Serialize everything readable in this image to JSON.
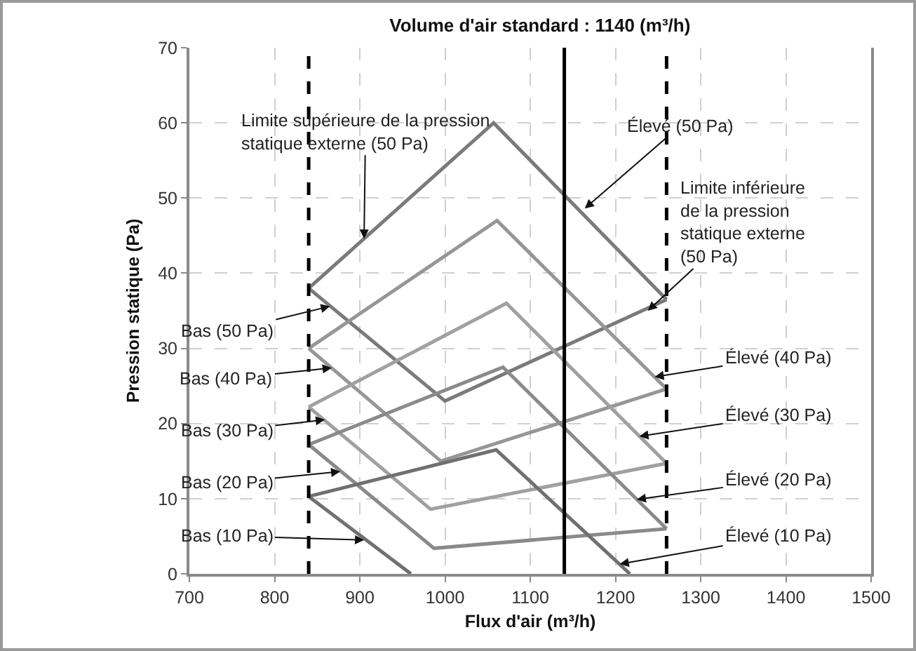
{
  "chart_data": {
    "type": "line",
    "title": "Volume d'air standard : 1140 (m³/h)",
    "xlabel": "Flux d'air (m³/h)",
    "ylabel": "Pression statique (Pa)",
    "xlim": [
      700,
      1500
    ],
    "ylim": [
      0,
      70
    ],
    "xticks": [
      700,
      800,
      900,
      1000,
      1100,
      1200,
      1300,
      1400,
      1500
    ],
    "yticks": [
      0,
      10,
      20,
      30,
      40,
      50,
      60,
      70
    ],
    "grid": true,
    "line_style": "solid",
    "series": [
      {
        "color": "#7a7a7a",
        "x": [
          840,
          1057,
          1260
        ],
        "values": [
          38,
          60,
          36.5
        ]
      },
      {
        "color": "#7a7a7a",
        "x": [
          840,
          1000,
          1260
        ],
        "values": [
          38,
          23,
          36.5
        ]
      },
      {
        "color": "#969696",
        "x": [
          840,
          1061,
          1260
        ],
        "values": [
          30,
          47,
          24.6
        ]
      },
      {
        "color": "#969696",
        "x": [
          840,
          995,
          1260
        ],
        "values": [
          30,
          15,
          24.6
        ]
      },
      {
        "color": "#a0a0a0",
        "x": [
          840,
          1072,
          1260
        ],
        "values": [
          22.2,
          36,
          14.7
        ]
      },
      {
        "color": "#a0a0a0",
        "x": [
          840,
          983,
          1260
        ],
        "values": [
          22.2,
          8.6,
          14.7
        ]
      },
      {
        "color": "#8a8a8a",
        "x": [
          840,
          1068,
          1260
        ],
        "values": [
          17.2,
          27.5,
          6
        ]
      },
      {
        "color": "#8a8a8a",
        "x": [
          840,
          987,
          1260
        ],
        "values": [
          17.2,
          3.4,
          6
        ]
      },
      {
        "color": "#707070",
        "x": [
          840,
          1060,
          1217
        ],
        "values": [
          10.3,
          16.5,
          0
        ]
      },
      {
        "color": "#707070",
        "x": [
          840,
          960
        ],
        "values": [
          10.3,
          0
        ]
      }
    ],
    "ref_lines": [
      {
        "axis": "x",
        "value": 840,
        "color": "#000000",
        "line_style": "dashed"
      },
      {
        "axis": "x",
        "value": 1140,
        "color": "#000000",
        "line_style": "solid"
      },
      {
        "axis": "x",
        "value": 1260,
        "color": "#000000",
        "line_style": "dashed"
      }
    ],
    "annotations": [
      {
        "text": "Limite supérieure de la pression\nstatique externe (50 Pa)",
        "x": 905,
        "y": 44.6
      },
      {
        "text": "Élevé (50 Pa)",
        "x": 1164,
        "y": 48.6
      },
      {
        "text": "Limite inférieure\nde la pression\nstatique externe\n(50 Pa)",
        "x": 1238,
        "y": 35
      },
      {
        "text": "Bas (50 Pa)",
        "x": 865,
        "y": 35.6
      },
      {
        "text": "Bas (40 Pa)",
        "x": 867,
        "y": 27.4
      },
      {
        "text": "Bas (30 Pa)",
        "x": 859,
        "y": 20.5
      },
      {
        "text": "Bas (20 Pa)",
        "x": 877,
        "y": 13.6
      },
      {
        "text": "Bas (10 Pa)",
        "x": 905,
        "y": 4.5
      },
      {
        "text": "Élevé (40 Pa)",
        "x": 1246,
        "y": 26.2
      },
      {
        "text": "Élevé (30 Pa)",
        "x": 1228,
        "y": 18.3
      },
      {
        "text": "Élevé (20 Pa)",
        "x": 1225,
        "y": 9.9
      },
      {
        "text": "Élevé (10 Pa)",
        "x": 1205,
        "y": 1.3
      }
    ]
  }
}
